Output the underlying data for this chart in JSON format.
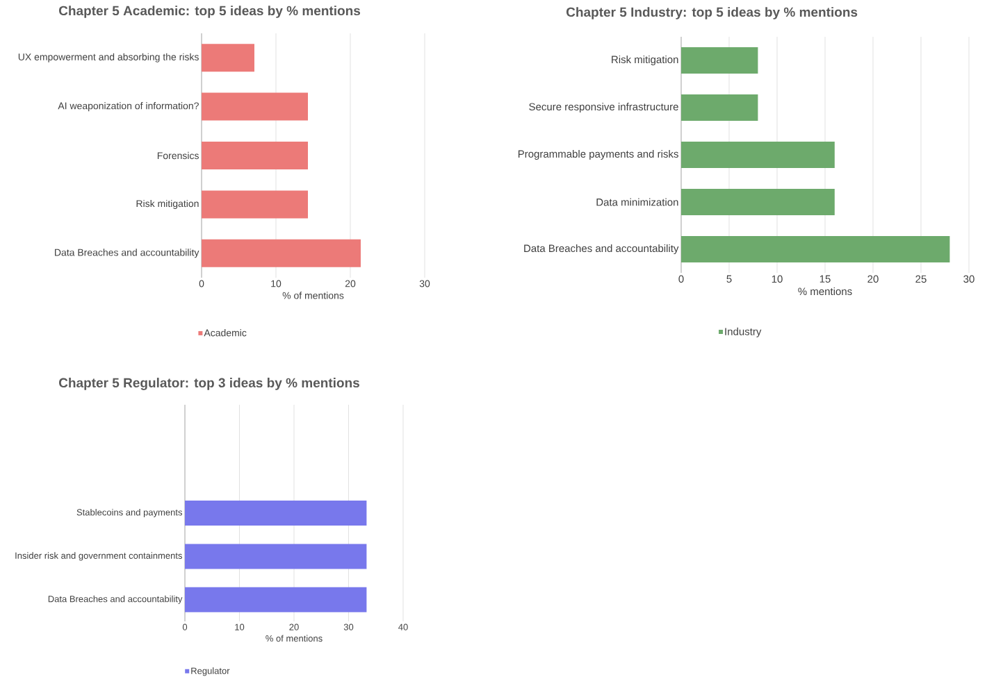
{
  "chart_data": [
    {
      "type": "bar",
      "orientation": "horizontal",
      "title": "Chapter 5 Academic:  top 5 ideas by %  mentions",
      "xlabel": "% of mentions",
      "categories": [
        "UX empowerment and absorbing the risks",
        "AI weaponization of information?",
        "Forensics",
        "Risk mitigation",
        "Data Breaches and accountability"
      ],
      "series": [
        {
          "name": "Academic",
          "color": "#ec7a78",
          "values": [
            7.1,
            14.3,
            14.3,
            14.3,
            21.4
          ]
        }
      ],
      "xlim": [
        0,
        30
      ],
      "xticks": [
        0,
        10,
        20,
        30
      ],
      "grid": "x",
      "legend": "bottom"
    },
    {
      "type": "bar",
      "orientation": "horizontal",
      "title": "Chapter 5 Industry:  top 5 ideas by %  mentions",
      "xlabel": "% mentions",
      "categories": [
        "Risk mitigation",
        "Secure responsive infrastructure",
        "Programmable payments and risks",
        "Data minimization",
        "Data Breaches and accountability"
      ],
      "series": [
        {
          "name": "Industry",
          "color": "#6daa6c",
          "values": [
            8,
            8,
            16,
            16,
            28
          ]
        }
      ],
      "xlim": [
        0,
        30
      ],
      "xticks": [
        0,
        5,
        10,
        15,
        20,
        25,
        30
      ],
      "grid": "x",
      "legend": "bottom"
    },
    {
      "type": "bar",
      "orientation": "horizontal",
      "title": "Chapter 5 Regulator:  top 3 ideas by %  mentions",
      "xlabel": "% of mentions",
      "categories": [
        null,
        null,
        "Stablecoins and payments",
        "Insider risk and government containments",
        "Data Breaches and accountability"
      ],
      "series": [
        {
          "name": "Regulator",
          "color": "#7878ec",
          "values": [
            null,
            null,
            33.3,
            33.3,
            33.3
          ]
        }
      ],
      "xlim": [
        0,
        40
      ],
      "xticks": [
        0,
        10,
        20,
        30,
        40
      ],
      "grid": "x",
      "legend": "bottom"
    }
  ]
}
